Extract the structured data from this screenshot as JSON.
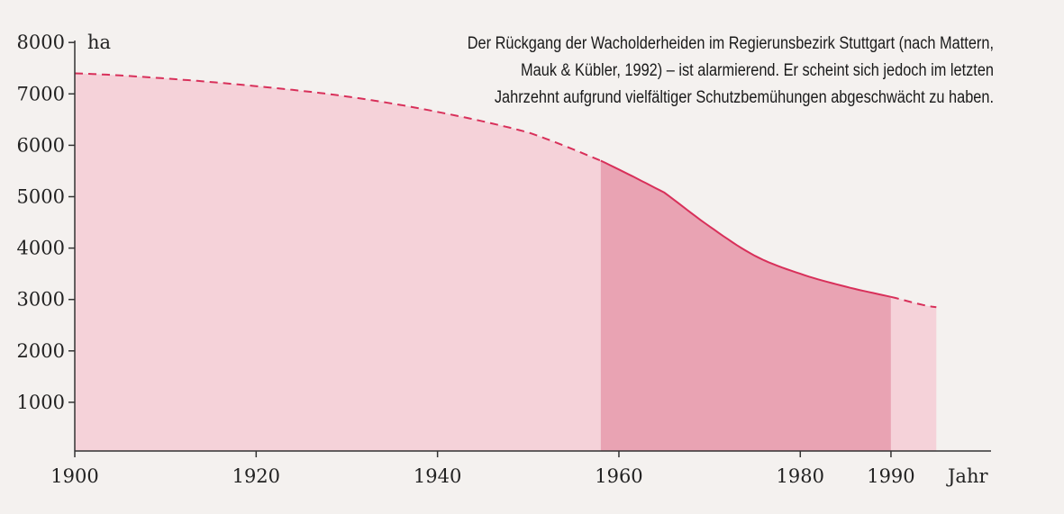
{
  "chart_data": {
    "type": "area",
    "title": "",
    "caption": "Der Rückgang der Wacholderheiden im Regierunsbezirk Stuttgart (nach Mattern, Mauk & Kübler, 1992) – ist alarmierend. Er scheint sich jedoch im letzten Jahrzehnt aufgrund vielfältiger Schutzbemühungen abgeschwächt zu haben.",
    "xlabel": "Jahr",
    "ylabel": "ha",
    "xlim": [
      1900,
      1995
    ],
    "ylim": [
      0,
      8000
    ],
    "x_ticks": [
      "1900",
      "1920",
      "1940",
      "1960",
      "1980",
      "1990"
    ],
    "y_ticks": [
      "1000",
      "2000",
      "3000",
      "4000",
      "5000",
      "6000",
      "7000",
      "8000"
    ],
    "x": [
      1900,
      1910,
      1920,
      1930,
      1940,
      1950,
      1958,
      1965,
      1970,
      1975,
      1980,
      1985,
      1990,
      1995
    ],
    "values": [
      7400,
      7300,
      7150,
      6950,
      6650,
      6250,
      5700,
      5080,
      4420,
      3850,
      3500,
      3250,
      3050,
      2850
    ],
    "measured_range": [
      1958,
      1990
    ],
    "estimated_style": "dashed",
    "colors": {
      "line": "#d8305a",
      "fill_estimated": "#f5d2d9",
      "fill_measured": "#e9a3b3"
    }
  }
}
